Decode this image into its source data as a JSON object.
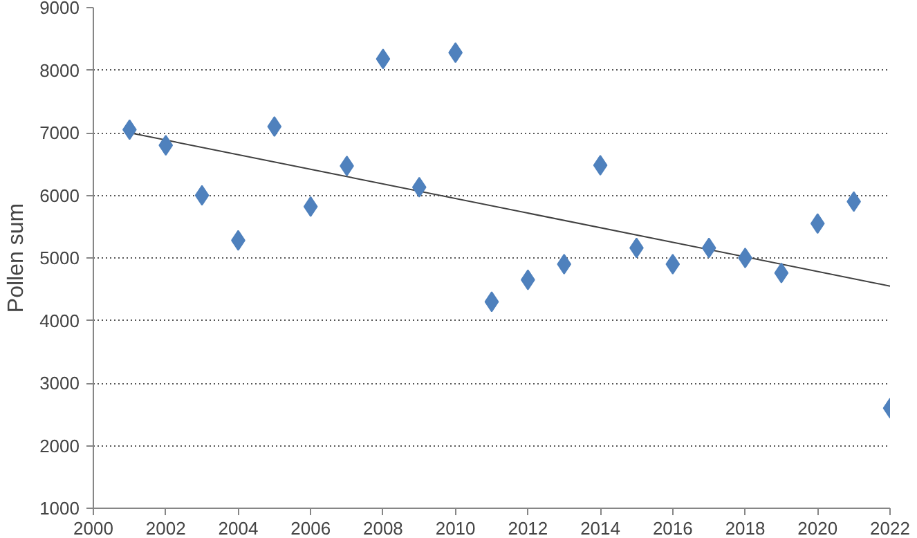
{
  "chart_data": {
    "type": "scatter",
    "ylabel": "Pollen sum",
    "marker": "diamond",
    "grid": "y",
    "xlim": [
      2000,
      2022
    ],
    "xticks": [
      2000,
      2002,
      2004,
      2006,
      2008,
      2010,
      2012,
      2014,
      2016,
      2018,
      2020,
      2022
    ],
    "ylim": [
      1000,
      9000
    ],
    "yticks": [
      1000,
      2000,
      3000,
      4000,
      5000,
      6000,
      7000,
      8000,
      9000
    ],
    "series": [
      {
        "color": "#4f81bd",
        "x": [
          2001,
          2002,
          2003,
          2004,
          2005,
          2006,
          2007,
          2008,
          2009,
          2010,
          2011,
          2012,
          2013,
          2014,
          2015,
          2016,
          2017,
          2018,
          2019,
          2020,
          2021,
          2022
        ],
        "values": [
          7050,
          6800,
          6000,
          5280,
          7100,
          5820,
          6470,
          8180,
          6130,
          8280,
          4300,
          4650,
          4900,
          6480,
          5160,
          4900,
          5160,
          5000,
          4760,
          5550,
          5900,
          2600
        ]
      },
      {
        "type": "line",
        "color": "#404040",
        "marker": "none",
        "x": [
          2001,
          2022
        ],
        "values": [
          7000,
          4550
        ]
      }
    ]
  }
}
